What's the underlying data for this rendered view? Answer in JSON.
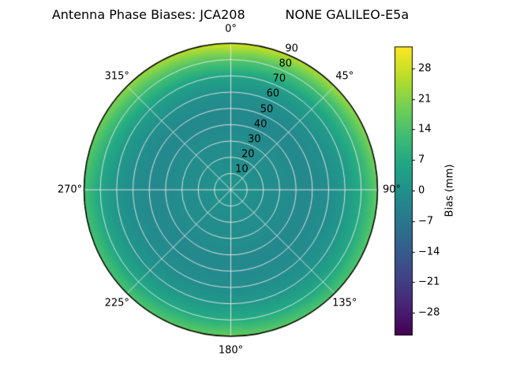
{
  "chart_data": {
    "type": "heatmap",
    "projection": "polar",
    "title": "Antenna Phase Biases: JCA208          NONE GALILEO-E5a",
    "angular_ticks": [
      "0°",
      "45°",
      "90°",
      "135°",
      "180°",
      "225°",
      "270°",
      "315°"
    ],
    "angular_tick_degrees": [
      0,
      45,
      90,
      135,
      180,
      225,
      270,
      315
    ],
    "radial_ticks": [
      10,
      20,
      30,
      40,
      50,
      60,
      70,
      80,
      90
    ],
    "radial_label_angle_deg": 22.5,
    "radial_range": [
      0,
      90
    ],
    "grid": true,
    "colorbar": {
      "label": "Bias (mm)",
      "ticks": [
        28,
        21,
        14,
        7,
        0,
        -7,
        -14,
        -21,
        -28
      ],
      "tick_labels": [
        "28",
        "21",
        "14",
        "7",
        "0",
        "−7",
        "−14",
        "−21",
        "−28"
      ],
      "vmin": -33,
      "vmax": 33
    },
    "colormap": "viridis",
    "colormap_stops": [
      "#440154",
      "#482475",
      "#414487",
      "#355f8d",
      "#2a788e",
      "#21918c",
      "#22a884",
      "#44bf70",
      "#7ad151",
      "#bddf26",
      "#fde725"
    ],
    "azimuth_deg": [
      0,
      45,
      90,
      135,
      180,
      225,
      270,
      315
    ],
    "zenith_deg": [
      0,
      10,
      20,
      30,
      40,
      50,
      60,
      70,
      80,
      90
    ],
    "bias_mm": [
      [
        0,
        0,
        -1,
        -1,
        -2,
        -2,
        0,
        6,
        16,
        29
      ],
      [
        0,
        0,
        -1,
        -1,
        -2,
        -2,
        0,
        4,
        12,
        24
      ],
      [
        0,
        0,
        -1,
        -1,
        -2,
        -2,
        -1,
        2,
        8,
        17
      ],
      [
        0,
        0,
        -1,
        -1,
        -2,
        -2,
        -1,
        1,
        6,
        14
      ],
      [
        0,
        0,
        -1,
        -1,
        -2,
        -2,
        -1,
        2,
        8,
        18
      ],
      [
        0,
        0,
        -1,
        -1,
        -2,
        -2,
        -1,
        1,
        6,
        14
      ],
      [
        0,
        0,
        -1,
        -1,
        -2,
        -2,
        -1,
        1,
        6,
        13
      ],
      [
        0,
        0,
        -1,
        -1,
        -2,
        -2,
        0,
        4,
        12,
        22
      ]
    ]
  }
}
